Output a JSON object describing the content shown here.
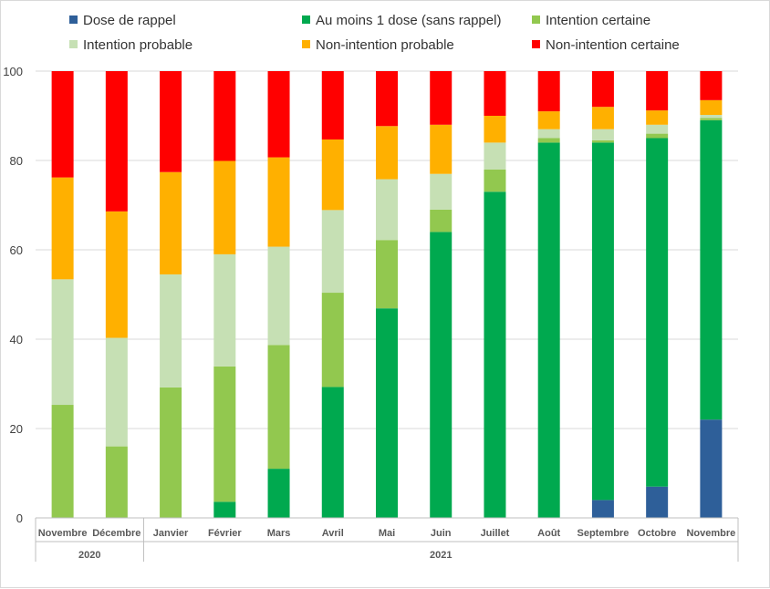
{
  "chart_data": {
    "type": "bar",
    "stacked": true,
    "title": "",
    "xlabel": "",
    "ylabel": "",
    "ylim": [
      0,
      100
    ],
    "yticks": [
      0,
      20,
      40,
      60,
      80,
      100
    ],
    "grid": true,
    "legend_position": "top",
    "categories": [
      "Novembre",
      "Décembre",
      "Janvier",
      "Février",
      "Mars",
      "Avril",
      "Mai",
      "Juin",
      "Juillet",
      "Août",
      "Septembre",
      "Octobre",
      "Novembre"
    ],
    "year_groups": [
      {
        "label": "2020",
        "span": 2
      },
      {
        "label": "2021",
        "span": 11
      }
    ],
    "series": [
      {
        "name": "Dose de rappel",
        "color": "#2e5f99",
        "values": [
          0,
          0,
          0,
          0,
          0,
          0,
          0,
          0,
          0,
          0,
          4,
          7,
          22
        ]
      },
      {
        "name": "Au moins 1 dose (sans rappel)",
        "color": "#00a94f",
        "values": [
          0,
          0,
          0,
          3.6,
          11,
          29.3,
          46.9,
          64,
          73,
          84,
          80,
          78,
          67
        ]
      },
      {
        "name": "Intention certaine",
        "color": "#92c84f",
        "values": [
          25.3,
          16,
          29.2,
          30.3,
          27.7,
          21.1,
          15.3,
          5,
          5,
          1,
          0.5,
          1,
          0.5
        ]
      },
      {
        "name": "Intention probable",
        "color": "#c6e0b4",
        "values": [
          28.1,
          24.3,
          25.3,
          25.1,
          22,
          18.5,
          13.6,
          8,
          6,
          2,
          2.5,
          2,
          0.7
        ]
      },
      {
        "name": "Non-intention probable",
        "color": "#ffb000",
        "values": [
          22.8,
          28.3,
          22.9,
          20.9,
          20,
          15.8,
          11.9,
          11,
          6,
          4,
          5,
          3.2,
          3.3
        ]
      },
      {
        "name": "Non-intention certaine",
        "color": "#ff0000",
        "values": [
          23.8,
          31.4,
          22.6,
          20.1,
          19.3,
          15.3,
          12.3,
          12,
          10,
          9,
          8,
          8.8,
          6.5
        ]
      }
    ]
  }
}
